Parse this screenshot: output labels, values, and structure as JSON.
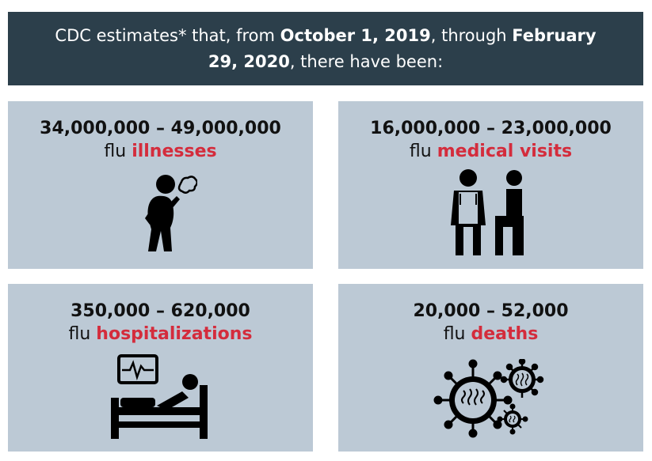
{
  "header": {
    "p1": "CDC estimates* that, from ",
    "b1": "October 1, 2019",
    "p2": ", through ",
    "b2": "February 29, 2020",
    "p3": ", there have been:"
  },
  "cards": [
    {
      "range": "34,000,000 – 49,000,000",
      "prefix": "flu ",
      "accent": "illnesses",
      "icon": "sick-person-coughing-icon"
    },
    {
      "range": "16,000,000 – 23,000,000",
      "prefix": "flu ",
      "accent": "medical visits",
      "icon": "doctor-and-patient-icon"
    },
    {
      "range": "350,000 – 620,000",
      "prefix": "flu ",
      "accent": "hospitalizations",
      "icon": "hospital-bed-monitor-icon"
    },
    {
      "range": "20,000 – 52,000",
      "prefix": "flu ",
      "accent": "deaths",
      "icon": "flu-virus-icon"
    }
  ],
  "colors": {
    "header_bg": "#2c3f4b",
    "card_bg": "#bcc9d5",
    "accent": "#d42c3c"
  }
}
